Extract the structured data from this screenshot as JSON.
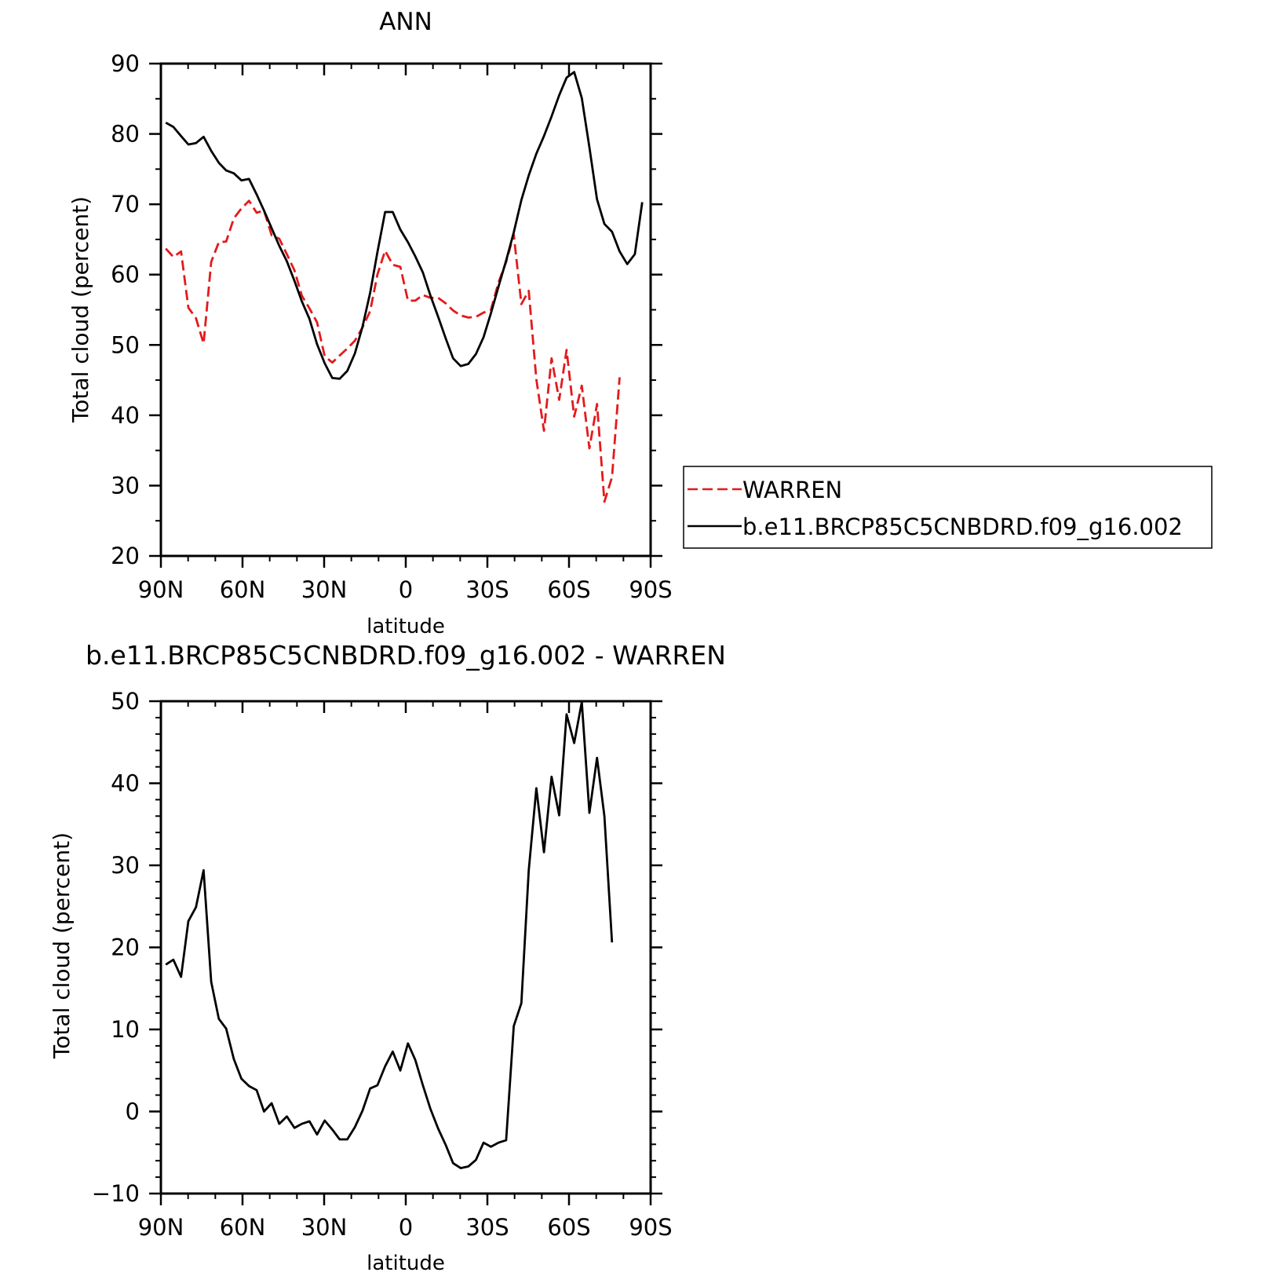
{
  "chart_data": [
    {
      "type": "line",
      "title": "ANN",
      "xlabel": "latitude",
      "ylabel": "Total cloud (percent)",
      "xlim": [
        90,
        -90
      ],
      "ylim": [
        20,
        90
      ],
      "xticks": [
        {
          "value": 90,
          "label": "90N"
        },
        {
          "value": 60,
          "label": "60N"
        },
        {
          "value": 30,
          "label": "30N"
        },
        {
          "value": 0,
          "label": "0"
        },
        {
          "value": -30,
          "label": "30S"
        },
        {
          "value": -60,
          "label": "60S"
        },
        {
          "value": -90,
          "label": "90S"
        }
      ],
      "yticks": [
        20,
        30,
        40,
        50,
        60,
        70,
        80,
        90
      ],
      "legend_position": "right",
      "series": [
        {
          "name": "WARREN",
          "color": "#e31a1c",
          "dash": "dashed",
          "points": [
            [
              88.2,
              63.7
            ],
            [
              85.4,
              62.5
            ],
            [
              82.6,
              63.3
            ],
            [
              79.9,
              55.3
            ],
            [
              77.1,
              53.8
            ],
            [
              74.3,
              50.2
            ],
            [
              71.5,
              61.8
            ],
            [
              68.7,
              64.6
            ],
            [
              66.0,
              64.7
            ],
            [
              63.2,
              68.0
            ],
            [
              60.4,
              69.4
            ],
            [
              57.6,
              70.5
            ],
            [
              54.8,
              68.8
            ],
            [
              52.1,
              69.1
            ],
            [
              49.3,
              65.6
            ],
            [
              46.5,
              65.1
            ],
            [
              43.7,
              62.9
            ],
            [
              40.9,
              60.6
            ],
            [
              38.2,
              57.0
            ],
            [
              35.4,
              55.2
            ],
            [
              32.6,
              53.2
            ],
            [
              29.8,
              48.4
            ],
            [
              27.0,
              47.5
            ],
            [
              24.3,
              48.5
            ],
            [
              21.5,
              49.5
            ],
            [
              18.7,
              50.6
            ],
            [
              15.9,
              52.5
            ],
            [
              13.1,
              54.8
            ],
            [
              10.4,
              60.0
            ],
            [
              7.6,
              63.4
            ],
            [
              4.8,
              61.4
            ],
            [
              2.0,
              61.1
            ],
            [
              -0.8,
              56.3
            ],
            [
              -3.5,
              56.3
            ],
            [
              -6.3,
              57.1
            ],
            [
              -9.1,
              56.7
            ],
            [
              -11.9,
              56.7
            ],
            [
              -14.7,
              55.9
            ],
            [
              -17.4,
              54.9
            ],
            [
              -20.2,
              54.2
            ],
            [
              -23.0,
              53.9
            ],
            [
              -25.8,
              54.0
            ],
            [
              -28.6,
              54.6
            ],
            [
              -31.3,
              55.0
            ],
            [
              -34.1,
              58.9
            ],
            [
              -36.9,
              61.8
            ],
            [
              -39.7,
              65.7
            ],
            [
              -42.5,
              55.8
            ],
            [
              -45.2,
              57.7
            ],
            [
              -48.0,
              45.1
            ],
            [
              -50.8,
              37.8
            ],
            [
              -53.6,
              48.1
            ],
            [
              -56.4,
              42.2
            ],
            [
              -59.1,
              49.3
            ],
            [
              -61.9,
              39.8
            ],
            [
              -64.7,
              44.2
            ],
            [
              -67.5,
              35.3
            ],
            [
              -70.3,
              41.6
            ],
            [
              -73.0,
              27.7
            ],
            [
              -75.8,
              31.2
            ],
            [
              -78.6,
              45.4
            ]
          ]
        },
        {
          "name": "b.e11.BRCP85C5CNBDRD.f09_g16.002",
          "color": "#000000",
          "dash": "solid",
          "points": [
            [
              88.2,
              81.6
            ],
            [
              85.4,
              81.0
            ],
            [
              82.6,
              79.7
            ],
            [
              79.9,
              78.5
            ],
            [
              77.1,
              78.7
            ],
            [
              74.3,
              79.6
            ],
            [
              71.5,
              77.6
            ],
            [
              68.7,
              75.9
            ],
            [
              66.0,
              74.8
            ],
            [
              63.2,
              74.4
            ],
            [
              60.4,
              73.4
            ],
            [
              57.6,
              73.6
            ],
            [
              54.8,
              71.4
            ],
            [
              52.1,
              69.1
            ],
            [
              49.3,
              66.6
            ],
            [
              46.5,
              64.1
            ],
            [
              43.7,
              61.9
            ],
            [
              40.9,
              59.1
            ],
            [
              38.2,
              56.2
            ],
            [
              35.4,
              53.7
            ],
            [
              32.6,
              50.1
            ],
            [
              29.8,
              47.4
            ],
            [
              27.0,
              45.3
            ],
            [
              24.3,
              45.2
            ],
            [
              21.5,
              46.3
            ],
            [
              18.7,
              48.8
            ],
            [
              15.9,
              52.6
            ],
            [
              13.1,
              57.4
            ],
            [
              10.4,
              63.2
            ],
            [
              7.6,
              68.9
            ],
            [
              4.8,
              68.9
            ],
            [
              2.0,
              66.4
            ],
            [
              -0.8,
              64.6
            ],
            [
              -3.5,
              62.6
            ],
            [
              -6.3,
              60.3
            ],
            [
              -9.1,
              57.0
            ],
            [
              -11.9,
              54.0
            ],
            [
              -14.7,
              50.9
            ],
            [
              -17.4,
              48.1
            ],
            [
              -20.2,
              47.0
            ],
            [
              -23.0,
              47.3
            ],
            [
              -25.8,
              48.7
            ],
            [
              -28.6,
              51.1
            ],
            [
              -31.3,
              54.5
            ],
            [
              -34.1,
              58.3
            ],
            [
              -36.9,
              62.0
            ],
            [
              -39.7,
              66.0
            ],
            [
              -42.5,
              70.6
            ],
            [
              -45.2,
              74.1
            ],
            [
              -48.0,
              77.2
            ],
            [
              -50.8,
              79.7
            ],
            [
              -53.6,
              82.5
            ],
            [
              -56.4,
              85.5
            ],
            [
              -59.1,
              88.0
            ],
            [
              -61.9,
              88.8
            ],
            [
              -64.7,
              85.1
            ],
            [
              -67.5,
              78.1
            ],
            [
              -70.3,
              70.7
            ],
            [
              -73.0,
              67.2
            ],
            [
              -75.8,
              66.1
            ],
            [
              -78.6,
              63.3
            ],
            [
              -81.4,
              61.5
            ],
            [
              -84.2,
              62.9
            ],
            [
              -86.9,
              70.3
            ]
          ]
        }
      ]
    },
    {
      "type": "line",
      "title": "b.e11.BRCP85C5CNBDRD.f09_g16.002 - WARREN",
      "xlabel": "latitude",
      "ylabel": "Total cloud (percent)",
      "xlim": [
        90,
        -90
      ],
      "ylim": [
        -10,
        50
      ],
      "xticks": [
        {
          "value": 90,
          "label": "90N"
        },
        {
          "value": 60,
          "label": "60N"
        },
        {
          "value": 30,
          "label": "30N"
        },
        {
          "value": 0,
          "label": "0"
        },
        {
          "value": -30,
          "label": "30S"
        },
        {
          "value": -60,
          "label": "60S"
        },
        {
          "value": -90,
          "label": "90S"
        }
      ],
      "yticks": [
        -10,
        0,
        10,
        20,
        30,
        40,
        50
      ],
      "yticklabels": [
        "−10",
        "0",
        "10",
        "20",
        "30",
        "40",
        "50"
      ],
      "series": [
        {
          "color": "#000000",
          "dash": "solid",
          "points": [
            [
              88.2,
              17.9
            ],
            [
              85.4,
              18.5
            ],
            [
              82.6,
              16.4
            ],
            [
              79.9,
              23.2
            ],
            [
              77.1,
              24.9
            ],
            [
              74.3,
              29.4
            ],
            [
              71.5,
              15.8
            ],
            [
              68.7,
              11.3
            ],
            [
              66.0,
              10.1
            ],
            [
              63.2,
              6.4
            ],
            [
              60.4,
              4.0
            ],
            [
              57.6,
              3.1
            ],
            [
              54.8,
              2.6
            ],
            [
              52.1,
              0.0
            ],
            [
              49.3,
              1.0
            ],
            [
              46.5,
              -1.5
            ],
            [
              43.7,
              -0.6
            ],
            [
              40.9,
              -2.0
            ],
            [
              38.2,
              -1.5
            ],
            [
              35.4,
              -1.2
            ],
            [
              32.6,
              -2.8
            ],
            [
              29.8,
              -1.1
            ],
            [
              27.0,
              -2.2
            ],
            [
              24.3,
              -3.4
            ],
            [
              21.5,
              -3.4
            ],
            [
              18.7,
              -1.9
            ],
            [
              15.9,
              0.1
            ],
            [
              13.1,
              2.8
            ],
            [
              10.4,
              3.2
            ],
            [
              7.6,
              5.5
            ],
            [
              4.8,
              7.3
            ],
            [
              2.0,
              5.0
            ],
            [
              -0.8,
              8.3
            ],
            [
              -3.5,
              6.3
            ],
            [
              -6.3,
              3.2
            ],
            [
              -9.1,
              0.3
            ],
            [
              -11.9,
              -2.1
            ],
            [
              -14.7,
              -4.1
            ],
            [
              -17.4,
              -6.3
            ],
            [
              -20.2,
              -6.9
            ],
            [
              -23.0,
              -6.7
            ],
            [
              -25.8,
              -5.9
            ],
            [
              -28.6,
              -3.8
            ],
            [
              -31.3,
              -4.3
            ],
            [
              -34.1,
              -3.8
            ],
            [
              -36.9,
              -3.5
            ],
            [
              -39.7,
              10.4
            ],
            [
              -42.5,
              13.2
            ],
            [
              -45.2,
              29.4
            ],
            [
              -48.0,
              39.4
            ],
            [
              -50.8,
              31.6
            ],
            [
              -53.6,
              40.8
            ],
            [
              -56.4,
              36.1
            ],
            [
              -59.1,
              48.4
            ],
            [
              -61.9,
              44.9
            ],
            [
              -64.7,
              49.9
            ],
            [
              -67.5,
              36.4
            ],
            [
              -70.3,
              43.1
            ],
            [
              -73.0,
              36.0
            ],
            [
              -75.8,
              20.6
            ]
          ]
        }
      ]
    }
  ]
}
